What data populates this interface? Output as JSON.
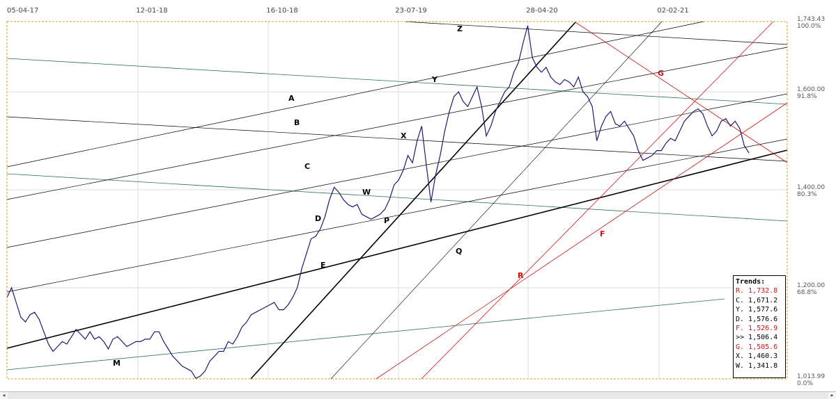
{
  "chart_data": {
    "type": "line",
    "x_tick_labels": [
      "05-04-17",
      "12-01-18",
      "16-10-18",
      "23-07-19",
      "28-04-20",
      "02-02-21"
    ],
    "y_tick_labels": [
      {
        "value": 1743.43,
        "price": "1,743.43",
        "pct": "100.0%"
      },
      {
        "value": 1600,
        "price": "1,600.00",
        "pct": "91.8%"
      },
      {
        "value": 1400,
        "price": "1,400.00",
        "pct": "80.3%"
      },
      {
        "value": 1200,
        "price": "1,200.00",
        "pct": "68.8%"
      },
      {
        "value": 1013.99,
        "price": "1,013.99",
        "pct": "0.0%"
      }
    ],
    "ylim": [
      1013.99,
      1743.43
    ],
    "series": [
      {
        "points": [
          [
            0,
            1180
          ],
          [
            1,
            1200
          ],
          [
            2,
            1170
          ],
          [
            3,
            1140
          ],
          [
            4,
            1130
          ],
          [
            5,
            1145
          ],
          [
            6,
            1150
          ],
          [
            7,
            1135
          ],
          [
            8,
            1110
          ],
          [
            9,
            1085
          ],
          [
            10,
            1070
          ],
          [
            11,
            1080
          ],
          [
            12,
            1090
          ],
          [
            13,
            1085
          ],
          [
            14,
            1100
          ],
          [
            15,
            1115
          ],
          [
            16,
            1105
          ],
          [
            17,
            1095
          ],
          [
            18,
            1110
          ],
          [
            19,
            1095
          ],
          [
            20,
            1100
          ],
          [
            21,
            1090
          ],
          [
            22,
            1075
          ],
          [
            23,
            1095
          ],
          [
            24,
            1100
          ],
          [
            25,
            1090
          ],
          [
            26,
            1080
          ],
          [
            27,
            1085
          ],
          [
            28,
            1090
          ],
          [
            29,
            1090
          ],
          [
            30,
            1095
          ],
          [
            31,
            1095
          ],
          [
            32,
            1110
          ],
          [
            33,
            1110
          ],
          [
            34,
            1090
          ],
          [
            35,
            1075
          ],
          [
            36,
            1060
          ],
          [
            37,
            1050
          ],
          [
            38,
            1040
          ],
          [
            39,
            1035
          ],
          [
            40,
            1030
          ],
          [
            41,
            1015
          ],
          [
            42,
            1020
          ],
          [
            43,
            1030
          ],
          [
            44,
            1050
          ],
          [
            45,
            1060
          ],
          [
            46,
            1070
          ],
          [
            47,
            1070
          ],
          [
            48,
            1090
          ],
          [
            49,
            1085
          ],
          [
            50,
            1100
          ],
          [
            51,
            1120
          ],
          [
            52,
            1130
          ],
          [
            53,
            1145
          ],
          [
            54,
            1150
          ],
          [
            55,
            1155
          ],
          [
            56,
            1160
          ],
          [
            57,
            1165
          ],
          [
            58,
            1170
          ],
          [
            59,
            1155
          ],
          [
            60,
            1155
          ],
          [
            61,
            1165
          ],
          [
            62,
            1180
          ],
          [
            63,
            1200
          ],
          [
            64,
            1240
          ],
          [
            65,
            1270
          ],
          [
            66,
            1300
          ],
          [
            67,
            1305
          ],
          [
            68,
            1320
          ],
          [
            69,
            1345
          ],
          [
            70,
            1380
          ],
          [
            71,
            1405
          ],
          [
            72,
            1395
          ],
          [
            73,
            1380
          ],
          [
            74,
            1370
          ],
          [
            75,
            1365
          ],
          [
            76,
            1370
          ],
          [
            77,
            1350
          ],
          [
            78,
            1345
          ],
          [
            79,
            1340
          ],
          [
            80,
            1345
          ],
          [
            81,
            1350
          ],
          [
            82,
            1360
          ],
          [
            83,
            1380
          ],
          [
            84,
            1410
          ],
          [
            85,
            1420
          ],
          [
            86,
            1440
          ],
          [
            87,
            1470
          ],
          [
            88,
            1455
          ],
          [
            89,
            1500
          ],
          [
            90,
            1530
          ],
          [
            91,
            1450
          ],
          [
            92,
            1375
          ],
          [
            93,
            1430
          ],
          [
            94,
            1470
          ],
          [
            95,
            1520
          ],
          [
            96,
            1560
          ],
          [
            97,
            1590
          ],
          [
            98,
            1600
          ],
          [
            99,
            1580
          ],
          [
            100,
            1570
          ],
          [
            101,
            1590
          ],
          [
            102,
            1610
          ],
          [
            103,
            1570
          ],
          [
            104,
            1510
          ],
          [
            105,
            1530
          ],
          [
            106,
            1560
          ],
          [
            107,
            1580
          ],
          [
            108,
            1600
          ],
          [
            109,
            1610
          ],
          [
            110,
            1640
          ],
          [
            111,
            1660
          ],
          [
            112,
            1700
          ],
          [
            113,
            1735
          ],
          [
            114,
            1670
          ],
          [
            115,
            1650
          ],
          [
            116,
            1640
          ],
          [
            117,
            1650
          ],
          [
            118,
            1630
          ],
          [
            119,
            1620
          ],
          [
            120,
            1615
          ],
          [
            121,
            1625
          ],
          [
            122,
            1620
          ],
          [
            123,
            1610
          ],
          [
            124,
            1630
          ],
          [
            125,
            1600
          ],
          [
            126,
            1590
          ],
          [
            127,
            1570
          ],
          [
            128,
            1500
          ],
          [
            129,
            1530
          ],
          [
            130,
            1550
          ],
          [
            131,
            1560
          ],
          [
            132,
            1535
          ],
          [
            133,
            1530
          ],
          [
            134,
            1540
          ],
          [
            135,
            1525
          ],
          [
            136,
            1510
          ],
          [
            137,
            1480
          ],
          [
            138,
            1460
          ],
          [
            139,
            1465
          ],
          [
            140,
            1470
          ],
          [
            141,
            1480
          ],
          [
            142,
            1480
          ],
          [
            143,
            1495
          ],
          [
            144,
            1505
          ],
          [
            145,
            1500
          ],
          [
            146,
            1520
          ],
          [
            147,
            1540
          ],
          [
            148,
            1550
          ],
          [
            149,
            1560
          ],
          [
            150,
            1565
          ],
          [
            151,
            1555
          ],
          [
            152,
            1530
          ],
          [
            153,
            1510
          ],
          [
            154,
            1520
          ],
          [
            155,
            1540
          ],
          [
            156,
            1545
          ],
          [
            157,
            1530
          ],
          [
            158,
            1540
          ],
          [
            159,
            1525
          ],
          [
            160,
            1490
          ],
          [
            161,
            1475
          ]
        ]
      }
    ],
    "trend_labels": [
      {
        "letter": "Z",
        "color": "#000000"
      },
      {
        "letter": "Y",
        "color": "#000000"
      },
      {
        "letter": "A",
        "color": "#000000"
      },
      {
        "letter": "B",
        "color": "#000000"
      },
      {
        "letter": "X",
        "color": "#000000"
      },
      {
        "letter": "C",
        "color": "#000000"
      },
      {
        "letter": "W",
        "color": "#000000"
      },
      {
        "letter": "D",
        "color": "#000000"
      },
      {
        "letter": "P",
        "color": "#000000"
      },
      {
        "letter": "Q",
        "color": "#000000"
      },
      {
        "letter": "E",
        "color": "#000000"
      },
      {
        "letter": "M",
        "color": "#000000"
      },
      {
        "letter": "G",
        "color": "#d01010"
      },
      {
        "letter": "F",
        "color": "#d01010"
      },
      {
        "letter": "R",
        "color": "#d01010"
      }
    ]
  },
  "trends_box": {
    "title": "Trends:",
    "rows": [
      {
        "key": "R.",
        "value": "1,732.8",
        "color": "#d01010"
      },
      {
        "key": "C.",
        "value": "1,671.2",
        "color": "#000000"
      },
      {
        "key": "Y.",
        "value": "1,577.6",
        "color": "#000000"
      },
      {
        "key": "D.",
        "value": "1,576.6",
        "color": "#000000"
      },
      {
        "key": "F.",
        "value": "1,526.9",
        "color": "#d01010"
      },
      {
        "key": ">>",
        "value": "1,506.4",
        "color": "#000000"
      },
      {
        "key": "G.",
        "value": "1,505.6",
        "color": "#d01010"
      },
      {
        "key": "X.",
        "value": "1,460.3",
        "color": "#000000"
      },
      {
        "key": "W.",
        "value": "1,341.8",
        "color": "#000000"
      }
    ]
  },
  "scrollbar": {
    "left_arrow": "◂",
    "right_arrow": "▸"
  },
  "colors": {
    "price_line": "#1a1a6e",
    "red_trend": "#d01010",
    "teal_trend": "#2a6e55",
    "frame": "#d4a020"
  }
}
